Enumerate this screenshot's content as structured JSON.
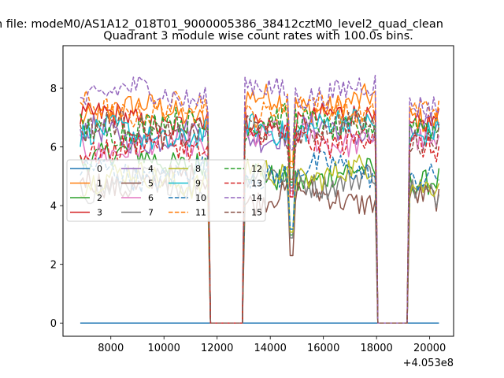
{
  "suptitle": "n file: modeM0/AS1A12_018T01_9000005386_38412cztM0_level2_quad_clean",
  "chart_data": {
    "type": "line",
    "title": "Quadrant 3 module wise count rates with 100.0s bins.",
    "xlabel": "",
    "ylabel": "",
    "x_offset_label": "+4.053e8",
    "xlim": [
      6200,
      20900
    ],
    "ylim": [
      -0.45,
      9.45
    ],
    "xticks": [
      8000,
      10000,
      12000,
      14000,
      16000,
      18000,
      20000
    ],
    "xtick_labels": [
      "8000",
      "10000",
      "12000",
      "14000",
      "16000",
      "18000",
      "20000"
    ],
    "yticks": [
      0,
      2,
      4,
      6,
      8
    ],
    "ytick_labels": [
      "0",
      "2",
      "4",
      "6",
      "8"
    ],
    "grid": false,
    "legend_placement": "center-left",
    "legend_columns": 4,
    "segments": [
      [
        6850,
        11650
      ],
      [
        13050,
        17950
      ],
      [
        19250,
        20350
      ]
    ],
    "gap_ranges": [
      [
        11750,
        12950
      ],
      [
        18050,
        19150
      ]
    ],
    "series": [
      {
        "name": "0",
        "color": "#1f77b4",
        "dash": "solid",
        "levels": [
          0,
          0,
          0
        ]
      },
      {
        "name": "1",
        "color": "#ff7f0e",
        "dash": "solid",
        "levels": [
          7.2,
          7.5,
          7.1
        ]
      },
      {
        "name": "2",
        "color": "#2ca02c",
        "dash": "solid",
        "levels": [
          5.6,
          5.0,
          5.0
        ]
      },
      {
        "name": "3",
        "color": "#d62728",
        "dash": "solid",
        "levels": [
          6.9,
          6.9,
          6.8
        ]
      },
      {
        "name": "4",
        "color": "#9467bd",
        "dash": "solid",
        "levels": [
          6.4,
          6.5,
          6.4
        ]
      },
      {
        "name": "5",
        "color": "#8c564b",
        "dash": "solid",
        "levels": [
          4.8,
          4.3,
          4.1
        ]
      },
      {
        "name": "6",
        "color": "#e377c2",
        "dash": "solid",
        "levels": [
          6.0,
          6.3,
          6.1
        ]
      },
      {
        "name": "7",
        "color": "#7f7f7f",
        "dash": "solid",
        "levels": [
          4.7,
          4.9,
          4.6
        ]
      },
      {
        "name": "8",
        "color": "#bcbd22",
        "dash": "solid",
        "levels": [
          4.9,
          5.1,
          4.9
        ]
      },
      {
        "name": "9",
        "color": "#17becf",
        "dash": "solid",
        "levels": [
          6.4,
          6.7,
          6.5
        ]
      },
      {
        "name": "10",
        "color": "#1f77b4",
        "dash": "dashed",
        "levels": [
          5.1,
          5.2,
          4.8
        ]
      },
      {
        "name": "11",
        "color": "#ff7f0e",
        "dash": "dashed",
        "levels": [
          7.3,
          7.3,
          7.1
        ]
      },
      {
        "name": "12",
        "color": "#2ca02c",
        "dash": "dashed",
        "levels": [
          6.7,
          6.8,
          6.6
        ]
      },
      {
        "name": "13",
        "color": "#d62728",
        "dash": "dashed",
        "levels": [
          6.0,
          6.3,
          6.1
        ]
      },
      {
        "name": "14",
        "color": "#9467bd",
        "dash": "dashed",
        "levels": [
          7.8,
          7.9,
          7.6
        ]
      },
      {
        "name": "15",
        "color": "#8c564b",
        "dash": "dashed",
        "levels": [
          6.6,
          6.6,
          6.4
        ]
      }
    ]
  }
}
